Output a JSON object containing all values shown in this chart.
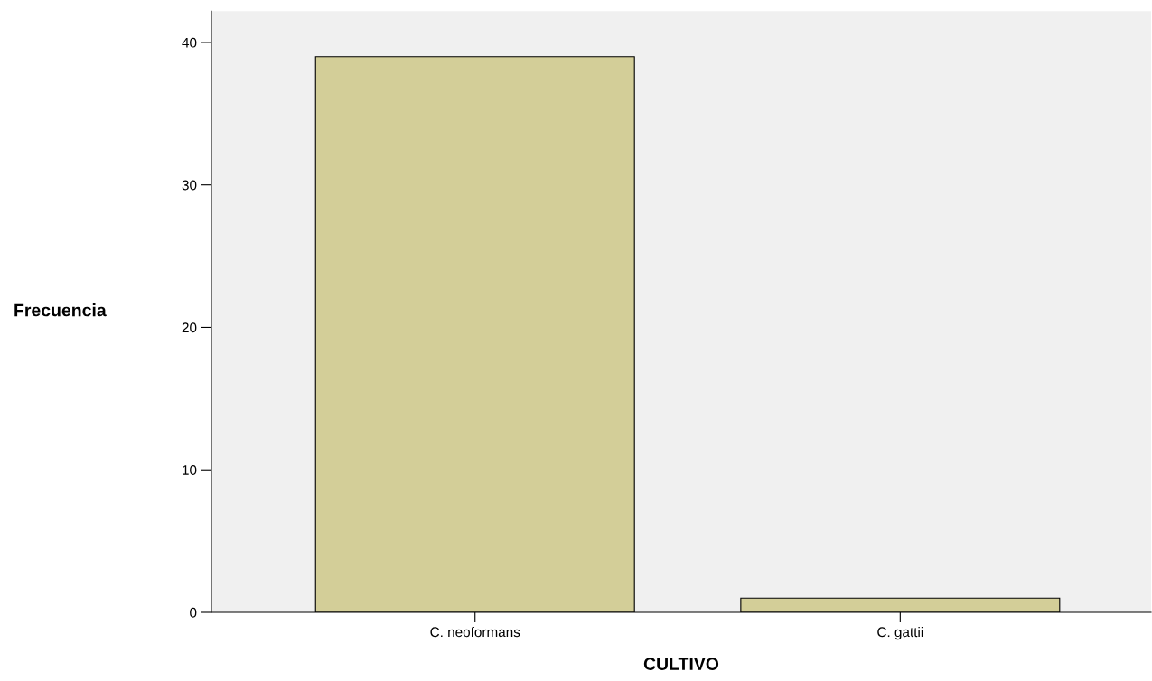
{
  "chart_data": {
    "type": "bar",
    "xlabel": "CULTIVO",
    "ylabel": "Frecuencia",
    "categories": [
      "C. neoformans",
      "C. gattii"
    ],
    "values": [
      39,
      1
    ],
    "color": "#d3ce98",
    "ylim": [
      0,
      42.2
    ],
    "yticks": [
      0,
      10,
      20,
      30,
      40
    ],
    "grid": false
  }
}
